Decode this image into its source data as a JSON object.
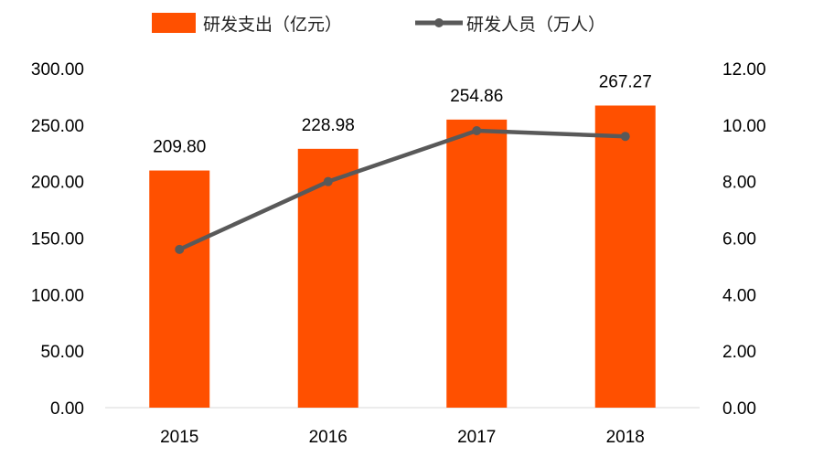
{
  "chart_data": {
    "type": "bar+line",
    "categories": [
      "2015",
      "2016",
      "2017",
      "2018"
    ],
    "series": [
      {
        "name": "研发支出（亿元）",
        "type": "bar",
        "axis": "left",
        "values": [
          209.8,
          228.98,
          254.86,
          267.27
        ],
        "data_labels": [
          "209.80",
          "228.98",
          "254.86",
          "267.27"
        ],
        "color": "#FF5000"
      },
      {
        "name": "研发人员（万人）",
        "type": "line",
        "axis": "right",
        "values": [
          5.6,
          8.0,
          9.8,
          9.6
        ],
        "color": "#595959"
      }
    ],
    "y_left": {
      "min": 0,
      "max": 300,
      "ticks": [
        "0.00",
        "50.00",
        "100.00",
        "150.00",
        "200.00",
        "250.00",
        "300.00"
      ]
    },
    "y_right": {
      "min": 0,
      "max": 12,
      "ticks": [
        "0.00",
        "2.00",
        "4.00",
        "6.00",
        "8.00",
        "10.00",
        "12.00"
      ]
    },
    "legend": "top-center",
    "grid": false
  }
}
